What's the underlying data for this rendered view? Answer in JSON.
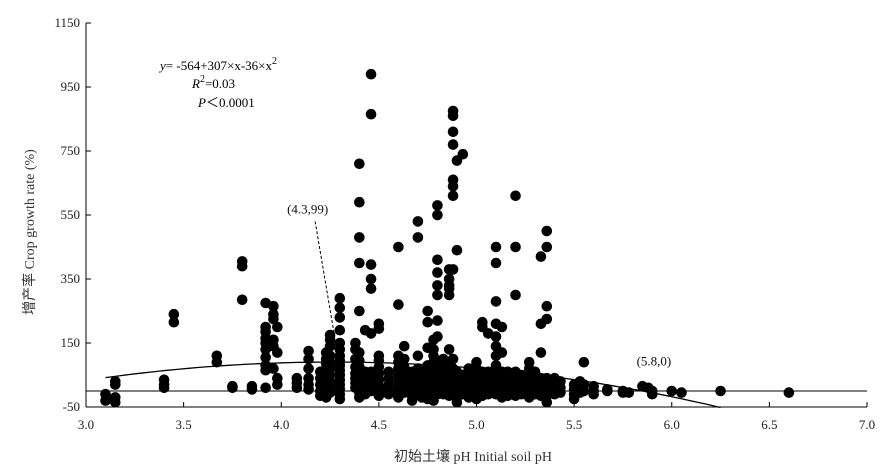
{
  "chart_data": {
    "type": "scatter",
    "title": "",
    "xlabel": "初始土壤 pH Initial soil pH",
    "ylabel": "增产率 Crop growth rate (%)",
    "xlim": [
      3.0,
      7.0
    ],
    "ylim": [
      -50,
      1150
    ],
    "x_ticks": [
      "3.0",
      "3.5",
      "4.0",
      "4.5",
      "5.0",
      "5.5",
      "6.0",
      "6.5",
      "7.0"
    ],
    "y_ticks": [
      "-50",
      "150",
      "350",
      "550",
      "750",
      "950",
      "1150"
    ],
    "grid": false,
    "legend": "none",
    "colors": {
      "points": "#000000",
      "fit_line": "#000000",
      "axis": "#000000"
    },
    "equation": {
      "fit_prefix": "y",
      "fit_body": "= -564+307×x-36×x",
      "fit_exp": "2",
      "r2_symbol": "R",
      "r2_exp": "2",
      "r2_value": "=0.03",
      "p_symbol": "P",
      "p_value": "＜0.0001"
    },
    "fit": {
      "a": -564,
      "b": 307,
      "c": -36,
      "x_range": [
        3.1,
        6.25
      ]
    },
    "annotations": [
      {
        "label": "(4.3,99)",
        "x": 4.3,
        "y": 99,
        "text_x": 4.03,
        "text_y": 555,
        "dashed": true
      },
      {
        "label": "(5.8,0)",
        "x": 5.8,
        "y": 0,
        "text_x": 5.82,
        "text_y": 80,
        "dashed": false
      }
    ],
    "points": [
      [
        3.1,
        -30
      ],
      [
        3.1,
        -10
      ],
      [
        3.15,
        -35
      ],
      [
        3.15,
        -20
      ],
      [
        3.15,
        30
      ],
      [
        3.15,
        20
      ],
      [
        3.4,
        35
      ],
      [
        3.4,
        20
      ],
      [
        3.4,
        10
      ],
      [
        3.45,
        240
      ],
      [
        3.45,
        215
      ],
      [
        3.67,
        110
      ],
      [
        3.67,
        90
      ],
      [
        3.75,
        10
      ],
      [
        3.75,
        15
      ],
      [
        3.8,
        405
      ],
      [
        3.8,
        390
      ],
      [
        3.8,
        285
      ],
      [
        3.85,
        15
      ],
      [
        3.85,
        5
      ],
      [
        3.92,
        275
      ],
      [
        3.92,
        200
      ],
      [
        3.92,
        185
      ],
      [
        3.92,
        165
      ],
      [
        3.92,
        150
      ],
      [
        3.92,
        130
      ],
      [
        3.92,
        105
      ],
      [
        3.92,
        80
      ],
      [
        3.92,
        65
      ],
      [
        3.92,
        10
      ],
      [
        3.96,
        265
      ],
      [
        3.96,
        240
      ],
      [
        3.96,
        225
      ],
      [
        3.96,
        160
      ],
      [
        3.96,
        140
      ],
      [
        3.96,
        70
      ],
      [
        3.98,
        200
      ],
      [
        3.98,
        120
      ],
      [
        3.98,
        40
      ],
      [
        3.98,
        20
      ],
      [
        4.08,
        40
      ],
      [
        4.08,
        25
      ],
      [
        4.08,
        10
      ],
      [
        4.14,
        125
      ],
      [
        4.14,
        100
      ],
      [
        4.14,
        70
      ],
      [
        4.14,
        40
      ],
      [
        4.14,
        20
      ],
      [
        4.14,
        5
      ],
      [
        4.2,
        60
      ],
      [
        4.2,
        40
      ],
      [
        4.2,
        20
      ],
      [
        4.2,
        0
      ],
      [
        4.2,
        -15
      ],
      [
        4.23,
        120
      ],
      [
        4.23,
        100
      ],
      [
        4.23,
        85
      ],
      [
        4.23,
        65
      ],
      [
        4.23,
        45
      ],
      [
        4.23,
        30
      ],
      [
        4.23,
        10
      ],
      [
        4.23,
        -5
      ],
      [
        4.23,
        -20
      ],
      [
        4.25,
        175
      ],
      [
        4.25,
        160
      ],
      [
        4.25,
        140
      ],
      [
        4.25,
        110
      ],
      [
        4.25,
        90
      ],
      [
        4.25,
        70
      ],
      [
        4.25,
        50
      ],
      [
        4.25,
        30
      ],
      [
        4.25,
        15
      ],
      [
        4.25,
        -5
      ],
      [
        4.3,
        290
      ],
      [
        4.3,
        260
      ],
      [
        4.3,
        230
      ],
      [
        4.3,
        190
      ],
      [
        4.3,
        150
      ],
      [
        4.3,
        130
      ],
      [
        4.3,
        110
      ],
      [
        4.3,
        95
      ],
      [
        4.3,
        80
      ],
      [
        4.3,
        65
      ],
      [
        4.3,
        50
      ],
      [
        4.3,
        35
      ],
      [
        4.3,
        20
      ],
      [
        4.3,
        5
      ],
      [
        4.3,
        -10
      ],
      [
        4.3,
        -25
      ],
      [
        4.38,
        150
      ],
      [
        4.38,
        130
      ],
      [
        4.38,
        100
      ],
      [
        4.38,
        75
      ],
      [
        4.38,
        55
      ],
      [
        4.38,
        40
      ],
      [
        4.38,
        25
      ],
      [
        4.38,
        10
      ],
      [
        4.4,
        710
      ],
      [
        4.4,
        590
      ],
      [
        4.4,
        480
      ],
      [
        4.4,
        400
      ],
      [
        4.4,
        250
      ],
      [
        4.4,
        120
      ],
      [
        4.4,
        95
      ],
      [
        4.4,
        75
      ],
      [
        4.4,
        55
      ],
      [
        4.4,
        40
      ],
      [
        4.4,
        25
      ],
      [
        4.4,
        10
      ],
      [
        4.4,
        -5
      ],
      [
        4.4,
        -20
      ],
      [
        4.43,
        190
      ],
      [
        4.43,
        60
      ],
      [
        4.43,
        40
      ],
      [
        4.43,
        20
      ],
      [
        4.43,
        5
      ],
      [
        4.43,
        -10
      ],
      [
        4.46,
        990
      ],
      [
        4.46,
        865
      ],
      [
        4.46,
        395
      ],
      [
        4.46,
        350
      ],
      [
        4.46,
        320
      ],
      [
        4.46,
        180
      ],
      [
        4.46,
        60
      ],
      [
        4.46,
        40
      ],
      [
        4.46,
        20
      ],
      [
        4.46,
        0
      ],
      [
        4.5,
        210
      ],
      [
        4.5,
        195
      ],
      [
        4.5,
        110
      ],
      [
        4.5,
        95
      ],
      [
        4.5,
        75
      ],
      [
        4.5,
        55
      ],
      [
        4.5,
        35
      ],
      [
        4.5,
        15
      ],
      [
        4.5,
        0
      ],
      [
        4.5,
        -15
      ],
      [
        4.55,
        60
      ],
      [
        4.55,
        40
      ],
      [
        4.55,
        20
      ],
      [
        4.55,
        5
      ],
      [
        4.55,
        -10
      ],
      [
        4.6,
        450
      ],
      [
        4.6,
        270
      ],
      [
        4.6,
        110
      ],
      [
        4.6,
        90
      ],
      [
        4.6,
        70
      ],
      [
        4.6,
        50
      ],
      [
        4.6,
        30
      ],
      [
        4.6,
        10
      ],
      [
        4.6,
        -5
      ],
      [
        4.6,
        -20
      ],
      [
        4.63,
        140
      ],
      [
        4.63,
        100
      ],
      [
        4.63,
        75
      ],
      [
        4.63,
        50
      ],
      [
        4.63,
        30
      ],
      [
        4.63,
        10
      ],
      [
        4.63,
        -5
      ],
      [
        4.67,
        60
      ],
      [
        4.67,
        40
      ],
      [
        4.67,
        20
      ],
      [
        4.67,
        0
      ],
      [
        4.67,
        -15
      ],
      [
        4.67,
        -30
      ],
      [
        4.7,
        530
      ],
      [
        4.7,
        480
      ],
      [
        4.7,
        110
      ],
      [
        4.7,
        70
      ],
      [
        4.7,
        50
      ],
      [
        4.7,
        30
      ],
      [
        4.7,
        10
      ],
      [
        4.7,
        -10
      ],
      [
        4.72,
        60
      ],
      [
        4.72,
        40
      ],
      [
        4.72,
        20
      ],
      [
        4.72,
        0
      ],
      [
        4.72,
        -20
      ],
      [
        4.75,
        250
      ],
      [
        4.75,
        215
      ],
      [
        4.75,
        135
      ],
      [
        4.75,
        80
      ],
      [
        4.75,
        60
      ],
      [
        4.75,
        40
      ],
      [
        4.75,
        20
      ],
      [
        4.75,
        5
      ],
      [
        4.75,
        -10
      ],
      [
        4.75,
        -25
      ],
      [
        4.78,
        160
      ],
      [
        4.78,
        130
      ],
      [
        4.78,
        110
      ],
      [
        4.78,
        90
      ],
      [
        4.78,
        60
      ],
      [
        4.78,
        40
      ],
      [
        4.78,
        20
      ],
      [
        4.78,
        0
      ],
      [
        4.78,
        -15
      ],
      [
        4.78,
        -30
      ],
      [
        4.8,
        580
      ],
      [
        4.8,
        550
      ],
      [
        4.8,
        410
      ],
      [
        4.8,
        370
      ],
      [
        4.8,
        330
      ],
      [
        4.8,
        300
      ],
      [
        4.8,
        220
      ],
      [
        4.8,
        170
      ],
      [
        4.8,
        90
      ],
      [
        4.8,
        60
      ],
      [
        4.8,
        30
      ],
      [
        4.8,
        10
      ],
      [
        4.8,
        -10
      ],
      [
        4.83,
        100
      ],
      [
        4.83,
        70
      ],
      [
        4.83,
        50
      ],
      [
        4.83,
        30
      ],
      [
        4.83,
        10
      ],
      [
        4.83,
        -10
      ],
      [
        4.86,
        380
      ],
      [
        4.86,
        350
      ],
      [
        4.86,
        330
      ],
      [
        4.86,
        320
      ],
      [
        4.86,
        300
      ],
      [
        4.86,
        130
      ],
      [
        4.86,
        90
      ],
      [
        4.86,
        60
      ],
      [
        4.86,
        40
      ],
      [
        4.86,
        20
      ],
      [
        4.86,
        0
      ],
      [
        4.86,
        -15
      ],
      [
        4.88,
        875
      ],
      [
        4.88,
        860
      ],
      [
        4.88,
        810
      ],
      [
        4.88,
        770
      ],
      [
        4.88,
        660
      ],
      [
        4.88,
        640
      ],
      [
        4.88,
        610
      ],
      [
        4.88,
        380
      ],
      [
        4.88,
        100
      ],
      [
        4.88,
        70
      ],
      [
        4.88,
        40
      ],
      [
        4.88,
        10
      ],
      [
        4.9,
        720
      ],
      [
        4.9,
        440
      ],
      [
        4.9,
        60
      ],
      [
        4.9,
        40
      ],
      [
        4.9,
        20
      ],
      [
        4.9,
        0
      ],
      [
        4.9,
        -20
      ],
      [
        4.9,
        -35
      ],
      [
        4.93,
        740
      ],
      [
        4.93,
        50
      ],
      [
        4.93,
        30
      ],
      [
        4.93,
        10
      ],
      [
        4.93,
        -10
      ],
      [
        4.96,
        70
      ],
      [
        4.96,
        50
      ],
      [
        4.96,
        30
      ],
      [
        4.96,
        10
      ],
      [
        4.96,
        -5
      ],
      [
        4.96,
        -20
      ],
      [
        5.0,
        90
      ],
      [
        5.0,
        70
      ],
      [
        5.0,
        50
      ],
      [
        5.0,
        30
      ],
      [
        5.0,
        10
      ],
      [
        5.0,
        -10
      ],
      [
        5.0,
        -25
      ],
      [
        5.03,
        215
      ],
      [
        5.03,
        200
      ],
      [
        5.03,
        60
      ],
      [
        5.03,
        40
      ],
      [
        5.03,
        20
      ],
      [
        5.03,
        0
      ],
      [
        5.03,
        -15
      ],
      [
        5.06,
        180
      ],
      [
        5.06,
        60
      ],
      [
        5.06,
        40
      ],
      [
        5.06,
        20
      ],
      [
        5.06,
        5
      ],
      [
        5.06,
        -10
      ],
      [
        5.1,
        450
      ],
      [
        5.1,
        400
      ],
      [
        5.1,
        280
      ],
      [
        5.1,
        210
      ],
      [
        5.1,
        170
      ],
      [
        5.1,
        140
      ],
      [
        5.1,
        110
      ],
      [
        5.1,
        80
      ],
      [
        5.1,
        50
      ],
      [
        5.1,
        30
      ],
      [
        5.1,
        10
      ],
      [
        5.1,
        -10
      ],
      [
        5.13,
        200
      ],
      [
        5.13,
        120
      ],
      [
        5.13,
        60
      ],
      [
        5.13,
        40
      ],
      [
        5.13,
        20
      ],
      [
        5.13,
        0
      ],
      [
        5.13,
        -20
      ],
      [
        5.16,
        60
      ],
      [
        5.16,
        40
      ],
      [
        5.16,
        20
      ],
      [
        5.16,
        0
      ],
      [
        5.16,
        -15
      ],
      [
        5.2,
        610
      ],
      [
        5.2,
        450
      ],
      [
        5.2,
        300
      ],
      [
        5.2,
        60
      ],
      [
        5.2,
        40
      ],
      [
        5.2,
        20
      ],
      [
        5.2,
        0
      ],
      [
        5.2,
        -15
      ],
      [
        5.23,
        50
      ],
      [
        5.23,
        30
      ],
      [
        5.23,
        10
      ],
      [
        5.23,
        -10
      ],
      [
        5.27,
        90
      ],
      [
        5.27,
        70
      ],
      [
        5.27,
        50
      ],
      [
        5.27,
        30
      ],
      [
        5.27,
        10
      ],
      [
        5.27,
        -5
      ],
      [
        5.27,
        -20
      ],
      [
        5.3,
        60
      ],
      [
        5.3,
        40
      ],
      [
        5.3,
        20
      ],
      [
        5.3,
        5
      ],
      [
        5.3,
        -10
      ],
      [
        5.33,
        420
      ],
      [
        5.33,
        210
      ],
      [
        5.33,
        120
      ],
      [
        5.33,
        40
      ],
      [
        5.33,
        20
      ],
      [
        5.33,
        0
      ],
      [
        5.33,
        -15
      ],
      [
        5.36,
        500
      ],
      [
        5.36,
        450
      ],
      [
        5.36,
        265
      ],
      [
        5.36,
        225
      ],
      [
        5.36,
        40
      ],
      [
        5.36,
        20
      ],
      [
        5.36,
        0
      ],
      [
        5.36,
        -15
      ],
      [
        5.36,
        -35
      ],
      [
        5.4,
        40
      ],
      [
        5.4,
        20
      ],
      [
        5.4,
        5
      ],
      [
        5.4,
        -10
      ],
      [
        5.43,
        30
      ],
      [
        5.43,
        10
      ],
      [
        5.43,
        -5
      ],
      [
        5.5,
        20
      ],
      [
        5.5,
        5
      ],
      [
        5.5,
        -10
      ],
      [
        5.5,
        -25
      ],
      [
        5.53,
        30
      ],
      [
        5.53,
        10
      ],
      [
        5.53,
        -5
      ],
      [
        5.55,
        90
      ],
      [
        5.55,
        20
      ],
      [
        5.55,
        0
      ],
      [
        5.6,
        15
      ],
      [
        5.6,
        0
      ],
      [
        5.6,
        -10
      ],
      [
        5.67,
        5
      ],
      [
        5.67,
        0
      ],
      [
        5.75,
        0
      ],
      [
        5.75,
        -5
      ],
      [
        5.78,
        -5
      ],
      [
        5.85,
        15
      ],
      [
        5.88,
        10
      ],
      [
        5.9,
        0
      ],
      [
        5.9,
        -10
      ],
      [
        6.0,
        0
      ],
      [
        6.05,
        -5
      ],
      [
        6.25,
        0
      ],
      [
        6.6,
        -5
      ]
    ]
  }
}
